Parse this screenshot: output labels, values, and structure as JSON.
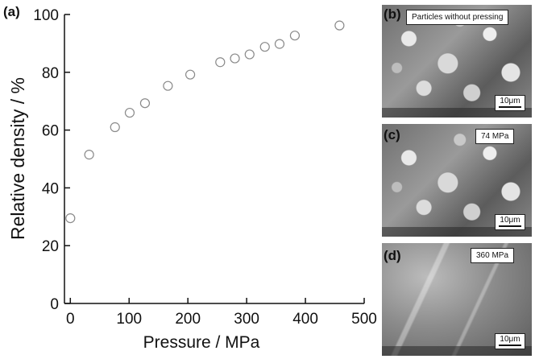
{
  "chart_data": {
    "type": "scatter",
    "panel_label": "(a)",
    "xlabel": "Pressure / MPa",
    "ylabel": "Relative density / %",
    "xlim": [
      -10,
      500
    ],
    "ylim": [
      0,
      100
    ],
    "xticks": [
      0,
      100,
      200,
      300,
      400,
      500
    ],
    "yticks": [
      0,
      20,
      40,
      60,
      80,
      100
    ],
    "grid": false,
    "marker": "open-circle",
    "marker_color": "#8a8a8a",
    "series": [
      {
        "points": [
          {
            "x": 0,
            "y": 29.5
          },
          {
            "x": 32,
            "y": 51.5
          },
          {
            "x": 76,
            "y": 61
          },
          {
            "x": 101,
            "y": 66
          },
          {
            "x": 127,
            "y": 69.3
          },
          {
            "x": 166,
            "y": 75.3
          },
          {
            "x": 204,
            "y": 79.2
          },
          {
            "x": 255,
            "y": 83.5
          },
          {
            "x": 280,
            "y": 84.8
          },
          {
            "x": 305,
            "y": 86.2
          },
          {
            "x": 331,
            "y": 88.8
          },
          {
            "x": 356,
            "y": 89.8
          },
          {
            "x": 382,
            "y": 92.7
          },
          {
            "x": 458,
            "y": 96.2
          }
        ]
      }
    ]
  },
  "micrographs": [
    {
      "panel_label": "(b)",
      "caption": "Particles without pressing",
      "scale": "10μm"
    },
    {
      "panel_label": "(c)",
      "caption": "74 MPa",
      "scale": "10μm"
    },
    {
      "panel_label": "(d)",
      "caption": "360 MPa",
      "scale": "10μm"
    }
  ]
}
